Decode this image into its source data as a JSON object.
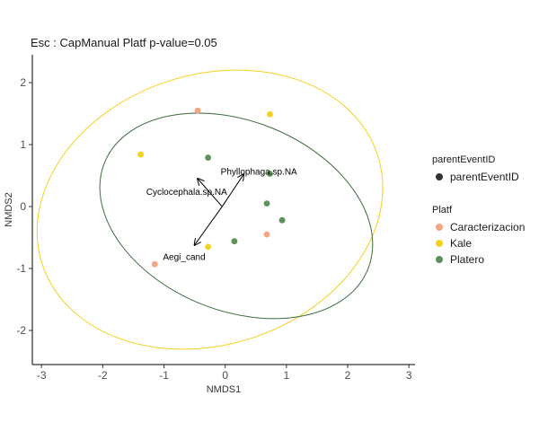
{
  "chart_data": {
    "type": "scatter",
    "title": "Esc : CapManual Platf  p-value=0.05",
    "xlabel": "NMDS1",
    "ylabel": "NMDS2",
    "xlim": [
      -3.15,
      3.1
    ],
    "ylim": [
      -2.55,
      2.45
    ],
    "xticks": [
      -3,
      -2,
      -1,
      0,
      1,
      2,
      3
    ],
    "yticks": [
      -2,
      -1,
      0,
      1,
      2
    ],
    "grid": false,
    "legend_position": "right",
    "series": [
      {
        "name": "Caracterizacion",
        "color": "#F4A582",
        "points": [
          [
            -0.45,
            1.55
          ],
          [
            0.68,
            -0.45
          ],
          [
            -1.15,
            -0.93
          ]
        ]
      },
      {
        "name": "Kale",
        "color": "#F5D020",
        "points": [
          [
            -1.38,
            0.84
          ],
          [
            0.73,
            1.49
          ],
          [
            -0.28,
            -0.65
          ]
        ]
      },
      {
        "name": "Platero",
        "color": "#5F8F5A",
        "points": [
          [
            -0.28,
            0.79
          ],
          [
            0.73,
            0.53
          ],
          [
            0.68,
            0.05
          ],
          [
            0.93,
            -0.22
          ],
          [
            0.93,
            -0.22
          ],
          [
            0.15,
            -0.56
          ]
        ]
      }
    ],
    "ellipses": [
      {
        "series": "Kale",
        "color": "#F5D020",
        "center": [
          -0.25,
          -0.05
        ],
        "rx": 2.88,
        "ry": 2.18,
        "angle_deg": -18
      },
      {
        "series": "Platero",
        "color": "#3E6E3E",
        "center": [
          0.18,
          -0.15
        ],
        "rx": 2.32,
        "ry": 1.53,
        "angle_deg": 22
      }
    ],
    "arrows": [
      {
        "label": "Phyllophaga.sp.NA",
        "from": [
          -0.05,
          0
        ],
        "to": [
          0.3,
          0.52
        ]
      },
      {
        "label": "Cyclocephala.sp.NA",
        "from": [
          -0.05,
          0
        ],
        "to": [
          -0.45,
          0.45
        ]
      },
      {
        "label": "Aegi_cand",
        "from": [
          -0.05,
          0
        ],
        "to": [
          -0.5,
          -0.62
        ]
      }
    ],
    "arrow_labels": [
      {
        "text": "Phyllophaga.sp.NA",
        "at": [
          0.55,
          0.57
        ]
      },
      {
        "text": "Cyclocephala.sp.NA",
        "at": [
          -0.63,
          0.25
        ]
      },
      {
        "text": "Aegi_cand",
        "at": [
          -0.67,
          -0.8
        ]
      }
    ]
  },
  "legend": {
    "shape_title": "parentEventID",
    "shape_entries": [
      {
        "label": "parentEventID",
        "color": "#333333"
      }
    ],
    "color_title": "Platf",
    "color_entries": [
      {
        "label": "Caracterizacion",
        "color": "#F4A582"
      },
      {
        "label": "Kale",
        "color": "#F5D020"
      },
      {
        "label": "Platero",
        "color": "#5F8F5A"
      }
    ]
  }
}
